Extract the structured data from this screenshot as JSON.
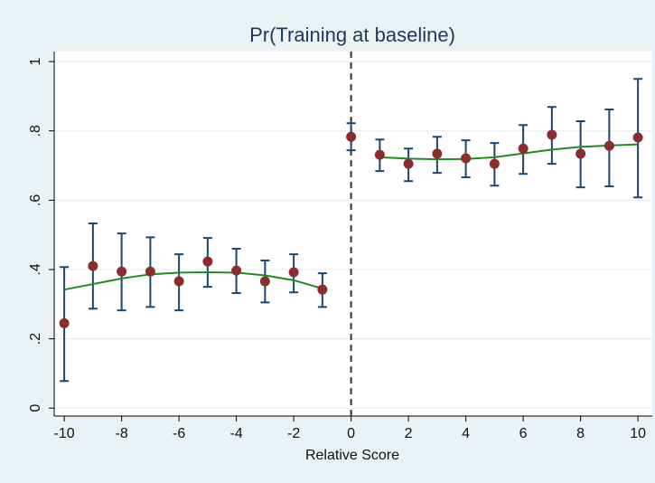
{
  "chart_data": {
    "type": "scatter",
    "title": "Pr(Training at baseline)",
    "x_label": "Relative Score",
    "x": [
      -10,
      -9,
      -8,
      -7,
      -6,
      -5,
      -4,
      -3,
      -2,
      -1,
      0,
      1,
      2,
      3,
      4,
      5,
      6,
      7,
      8,
      9,
      10
    ],
    "values": [
      0.245,
      0.41,
      0.394,
      0.394,
      0.366,
      0.423,
      0.397,
      0.366,
      0.392,
      0.342,
      0.783,
      0.731,
      0.705,
      0.734,
      0.721,
      0.705,
      0.749,
      0.789,
      0.734,
      0.757,
      0.781
    ],
    "ci_lower": [
      0.078,
      0.287,
      0.282,
      0.292,
      0.282,
      0.35,
      0.332,
      0.305,
      0.334,
      0.292,
      0.744,
      0.684,
      0.655,
      0.679,
      0.666,
      0.642,
      0.676,
      0.705,
      0.637,
      0.64,
      0.608
    ],
    "ci_upper": [
      0.407,
      0.533,
      0.504,
      0.493,
      0.444,
      0.491,
      0.46,
      0.426,
      0.444,
      0.389,
      0.822,
      0.775,
      0.749,
      0.783,
      0.773,
      0.765,
      0.817,
      0.869,
      0.828,
      0.862,
      0.95
    ],
    "point_color": "#8c2d2d",
    "ci_color": "#1a476f",
    "fit_color": "#1f8c1f",
    "fits": [
      {
        "x": [
          -10,
          -9,
          -8,
          -7,
          -6,
          -5,
          -4,
          -3,
          -2,
          -1
        ],
        "values": [
          0.342,
          0.358,
          0.374,
          0.386,
          0.391,
          0.392,
          0.391,
          0.383,
          0.369,
          0.345
        ]
      },
      {
        "x": [
          1,
          2,
          3,
          4,
          5,
          6,
          7,
          8,
          9,
          10
        ],
        "values": [
          0.724,
          0.72,
          0.718,
          0.719,
          0.724,
          0.735,
          0.746,
          0.754,
          0.758,
          0.761
        ]
      }
    ],
    "vline": 0,
    "xlim": [
      -10.35,
      10.5
    ],
    "ylim": [
      -0.023,
      1.029
    ],
    "xticks": [
      -10,
      -8,
      -6,
      -4,
      -2,
      0,
      2,
      4,
      6,
      8,
      10
    ],
    "yticks": [
      0,
      {
        "value": 0.2,
        "label": ".2"
      },
      {
        "value": 0.4,
        "label": ".4"
      },
      {
        "value": 0.6,
        "label": ".6"
      },
      {
        "value": 0.8,
        "label": ".8"
      },
      1
    ],
    "grid": true
  }
}
